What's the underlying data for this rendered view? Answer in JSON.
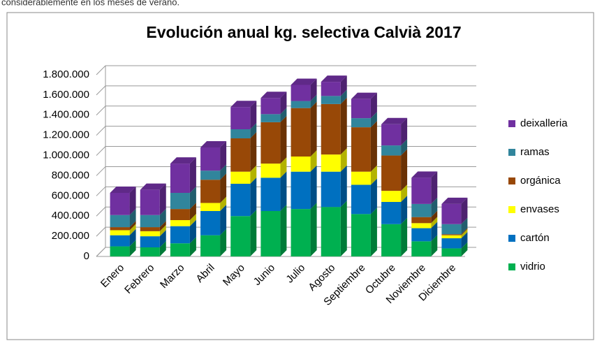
{
  "note": "considerablemente en los meses de verano.",
  "chart_data": {
    "type": "bar3d_stacked",
    "title": "Evolución anual kg. selectiva  Calvià 2017",
    "categories": [
      "Enero",
      "Febrero",
      "Marzo",
      "Abril",
      "Mayo",
      "Junio",
      "Julio",
      "Agosto",
      "Septiembre",
      "Octubre",
      "Noviembre",
      "Diciembre"
    ],
    "series": [
      {
        "name": "vidrio",
        "color": "#00b050",
        "values": [
          100000,
          90000,
          130000,
          210000,
          400000,
          450000,
          470000,
          490000,
          420000,
          320000,
          150000,
          80000
        ]
      },
      {
        "name": "cartón",
        "color": "#0070c0",
        "values": [
          110000,
          110000,
          170000,
          240000,
          320000,
          330000,
          370000,
          350000,
          290000,
          220000,
          130000,
          100000
        ]
      },
      {
        "name": "envases",
        "color": "#ffff00",
        "values": [
          50000,
          50000,
          60000,
          80000,
          120000,
          140000,
          150000,
          170000,
          130000,
          110000,
          50000,
          30000
        ]
      },
      {
        "name": "orgánica",
        "color": "#984807",
        "values": [
          30000,
          40000,
          110000,
          230000,
          330000,
          410000,
          480000,
          500000,
          440000,
          350000,
          60000,
          10000
        ]
      },
      {
        "name": "ramas",
        "color": "#31859c",
        "values": [
          120000,
          120000,
          160000,
          90000,
          90000,
          80000,
          70000,
          80000,
          90000,
          100000,
          130000,
          100000
        ]
      },
      {
        "name": "deixalleria",
        "color": "#7030a0",
        "values": [
          220000,
          250000,
          290000,
          230000,
          220000,
          160000,
          160000,
          140000,
          190000,
          210000,
          260000,
          200000
        ]
      }
    ],
    "ylim": [
      0,
      1800000
    ],
    "yticks": [
      0,
      {
        "value": 200000,
        "label": "200.000"
      },
      {
        "value": 400000,
        "label": "400.000"
      },
      {
        "value": 600000,
        "label": "600.000"
      },
      {
        "value": 800000,
        "label": "800.000"
      },
      {
        "value": 1000000,
        "label": "1.000.000"
      },
      {
        "value": 1200000,
        "label": "1.200.000"
      },
      {
        "value": 1400000,
        "label": "1.400.000"
      },
      {
        "value": 1600000,
        "label": "1.600.000"
      },
      {
        "value": 1800000,
        "label": "1.800.000"
      }
    ],
    "grid": true,
    "legend": "right"
  }
}
